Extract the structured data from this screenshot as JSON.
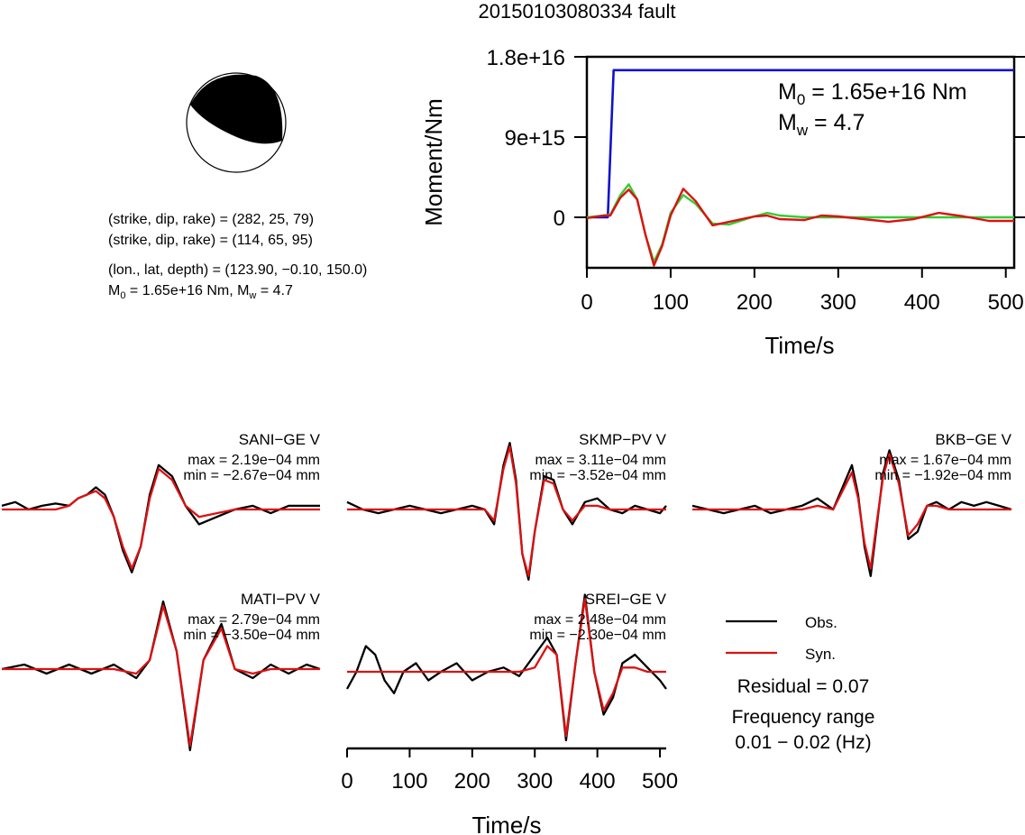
{
  "page_title": "20150103080334 fault",
  "mechanism": {
    "line1": "(strike, dip, rake) = (282, 25, 79)",
    "line2": "(strike, dip, rake) = (114, 65, 95)",
    "line3": "(lon., lat, depth) = (123.90, −0.10, 150.0)",
    "m0_label": "M",
    "m0_sub": "0",
    "m0_rest": " = 1.65e+16 Nm, M",
    "mw_sub": "w",
    "mw_rest": " = 4.7"
  },
  "moment_chart": {
    "ylabel": "Moment/Nm",
    "xlabel": "Time/s",
    "y_ticks": [
      "1.8e+16",
      "9e+15",
      "0"
    ],
    "x_ticks": [
      "0",
      "100",
      "200",
      "300",
      "400",
      "500"
    ],
    "m0_text": "M",
    "m0_sub": "0",
    "m0_value": " = 1.65e+16 Nm",
    "mw_text": "M",
    "mw_sub": "w",
    "mw_value": " = 4.7"
  },
  "waveforms": {
    "xlabel": "Time/s",
    "x_ticks": [
      "0",
      "100",
      "200",
      "300",
      "400",
      "500"
    ],
    "stations": [
      {
        "name": "SANI−GE V",
        "max": "max = 2.19e−04 mm",
        "min": "min = −2.67e−04 mm"
      },
      {
        "name": "SKMP−PV V",
        "max": "max = 3.11e−04 mm",
        "min": "min = −3.52e−04 mm"
      },
      {
        "name": "BKB−GE V",
        "max": "max = 1.67e−04 mm",
        "min": "min = −1.92e−04 mm"
      },
      {
        "name": "MATI−PV V",
        "max": "max = 2.79e−04 mm",
        "min": "min = −3.50e−04 mm"
      },
      {
        "name": "SREI−GE V",
        "max": "max = 2.48e−04 mm",
        "min": "min = −2.30e−04 mm"
      }
    ]
  },
  "legend": {
    "obs": "Obs.",
    "syn": "Syn.",
    "residual": "Residual = 0.07",
    "freq_title": "Frequency range",
    "freq_value": "0.01 − 0.02 (Hz)"
  },
  "colors": {
    "moment_function": "#1111cc",
    "observed": "#000000",
    "synthetic": "#dd1111",
    "synthetic_green": "#33cc33"
  },
  "chart_data": [
    {
      "type": "line",
      "title": "",
      "xlabel": "Time/s",
      "ylabel": "Moment/Nm",
      "xlim": [
        0,
        510
      ],
      "ylim": [
        -5500000000000000.0,
        1.8e+16
      ],
      "series": [
        {
          "color": "#1111cc",
          "x": [
            0,
            25,
            30,
            32,
            510
          ],
          "y": [
            0,
            0,
            1.2e+16,
            1.65e+16,
            1.65e+16
          ]
        },
        {
          "color": "#33cc33",
          "x": [
            0,
            20,
            28,
            40,
            50,
            60,
            70,
            80,
            90,
            100,
            115,
            130,
            150,
            170,
            200,
            215,
            230,
            260,
            300,
            350,
            400,
            450,
            510
          ],
          "y": [
            0,
            200000000000000.0,
            300000000000000.0,
            2500000000000000.0,
            3700000000000000.0,
            2000000000000000.0,
            -2000000000000000.0,
            -5000000000000000.0,
            -3000000000000000.0,
            500000000000000.0,
            2500000000000000.0,
            1500000000000000.0,
            -700000000000000.0,
            -800000000000000.0,
            100000000000000.0,
            500000000000000.0,
            200000000000000.0,
            0,
            0,
            0,
            0,
            0,
            0
          ]
        },
        {
          "color": "#dd1111",
          "x": [
            0,
            20,
            28,
            40,
            50,
            60,
            70,
            80,
            90,
            100,
            115,
            130,
            150,
            170,
            200,
            215,
            230,
            260,
            280,
            300,
            330,
            360,
            390,
            420,
            450,
            480,
            510
          ],
          "y": [
            -100000000000000.0,
            200000000000000.0,
            200000000000000.0,
            2200000000000000.0,
            3100000000000000.0,
            2000000000000000.0,
            -2000000000000000.0,
            -5400000000000000.0,
            -3200000000000000.0,
            200000000000000.0,
            3200000000000000.0,
            1800000000000000.0,
            -900000000000000.0,
            -500000000000000.0,
            100000000000000.0,
            200000000000000.0,
            -200000000000000.0,
            -300000000000000.0,
            200000000000000.0,
            100000000000000.0,
            -200000000000000.0,
            -500000000000000.0,
            -200000000000000.0,
            500000000000000.0,
            100000000000000.0,
            -400000000000000.0,
            -400000000000000.0
          ]
        }
      ]
    },
    {
      "type": "line",
      "title": "SANI−GE V",
      "xlim": [
        0,
        510
      ],
      "series": [
        {
          "name": "Obs.",
          "color": "#000000",
          "x": [
            0,
            15,
            30,
            45,
            60,
            75,
            85,
            95,
            105,
            115,
            125,
            135,
            145,
            155,
            165,
            175,
            190,
            205,
            220,
            240,
            260,
            280,
            300,
            320,
            340,
            355
          ],
          "y": [
            0.05,
            0.1,
            0.0,
            0.05,
            0.08,
            0.05,
            0.15,
            0.2,
            0.3,
            0.2,
            -0.1,
            -0.55,
            -0.85,
            -0.5,
            0.2,
            0.6,
            0.45,
            0.05,
            -0.2,
            -0.1,
            0.0,
            0.05,
            -0.05,
            0.05,
            0.05,
            0.05
          ]
        },
        {
          "name": "Syn.",
          "color": "#dd1111",
          "x": [
            0,
            15,
            30,
            45,
            60,
            75,
            85,
            95,
            105,
            115,
            125,
            135,
            145,
            155,
            165,
            175,
            190,
            205,
            220,
            240,
            260,
            280,
            300,
            320,
            340,
            355
          ],
          "y": [
            0.0,
            0.0,
            0.0,
            0.0,
            0.0,
            0.05,
            0.15,
            0.2,
            0.25,
            0.15,
            -0.1,
            -0.5,
            -0.8,
            -0.5,
            0.15,
            0.55,
            0.4,
            0.05,
            -0.1,
            -0.05,
            0.0,
            0.0,
            0.0,
            0.0,
            0.0,
            0.0
          ]
        }
      ]
    },
    {
      "type": "line",
      "title": "SKMP−PV V",
      "xlim": [
        0,
        510
      ],
      "series": [
        {
          "name": "Obs.",
          "color": "#000000",
          "x": [
            0,
            25,
            50,
            75,
            100,
            125,
            150,
            175,
            200,
            220,
            235,
            250,
            260,
            270,
            280,
            290,
            300,
            315,
            330,
            345,
            360,
            380,
            400,
            420,
            440,
            460,
            480,
            500,
            510
          ],
          "y": [
            0.1,
            0.0,
            -0.05,
            0.0,
            0.05,
            0.0,
            -0.05,
            0.0,
            0.05,
            0.0,
            -0.2,
            0.6,
            0.9,
            0.4,
            -0.6,
            -0.95,
            -0.3,
            0.45,
            0.4,
            0.0,
            -0.2,
            0.1,
            0.15,
            0.0,
            -0.05,
            0.05,
            0.0,
            -0.05,
            0.05
          ]
        },
        {
          "name": "Syn.",
          "color": "#dd1111",
          "x": [
            0,
            25,
            50,
            75,
            100,
            125,
            150,
            175,
            200,
            220,
            235,
            250,
            260,
            270,
            280,
            290,
            300,
            315,
            330,
            345,
            360,
            380,
            400,
            420,
            440,
            460,
            480,
            500,
            510
          ],
          "y": [
            0.0,
            0.0,
            0.0,
            0.0,
            0.0,
            0.0,
            0.0,
            0.0,
            0.0,
            0.0,
            -0.15,
            0.55,
            0.85,
            0.35,
            -0.6,
            -0.9,
            -0.3,
            0.4,
            0.35,
            0.0,
            -0.15,
            0.05,
            0.05,
            0.0,
            0.0,
            0.0,
            0.0,
            0.0,
            0.0
          ]
        }
      ]
    },
    {
      "type": "line",
      "title": "BKB−GE V",
      "xlim": [
        0,
        510
      ],
      "series": [
        {
          "name": "Obs.",
          "color": "#000000",
          "x": [
            0,
            25,
            50,
            75,
            100,
            125,
            150,
            175,
            200,
            225,
            240,
            255,
            265,
            275,
            285,
            295,
            305,
            315,
            330,
            345,
            360,
            375,
            390,
            410,
            430,
            450,
            470,
            490,
            510
          ],
          "y": [
            0.05,
            0.0,
            -0.05,
            0.0,
            0.05,
            -0.05,
            0.0,
            0.05,
            0.15,
            0.0,
            0.3,
            0.6,
            0.2,
            -0.5,
            -0.9,
            -0.2,
            0.5,
            0.8,
            0.4,
            -0.4,
            -0.3,
            0.05,
            0.1,
            0.0,
            0.1,
            0.05,
            0.1,
            0.05,
            0.0
          ]
        },
        {
          "name": "Syn.",
          "color": "#dd1111",
          "x": [
            0,
            25,
            50,
            75,
            100,
            125,
            150,
            175,
            200,
            225,
            240,
            255,
            265,
            275,
            285,
            295,
            305,
            315,
            330,
            345,
            360,
            375,
            390,
            410,
            430,
            450,
            470,
            490,
            510
          ],
          "y": [
            0.0,
            0.0,
            0.0,
            0.0,
            0.0,
            0.0,
            0.0,
            0.0,
            0.05,
            0.0,
            0.25,
            0.5,
            0.15,
            -0.45,
            -0.8,
            -0.15,
            0.45,
            0.75,
            0.35,
            -0.35,
            -0.2,
            0.05,
            0.05,
            0.0,
            0.0,
            0.0,
            0.0,
            0.0,
            0.0
          ]
        }
      ]
    },
    {
      "type": "line",
      "title": "MATI−PV V",
      "xlim": [
        0,
        510
      ],
      "series": [
        {
          "name": "Obs.",
          "color": "#000000",
          "x": [
            0,
            25,
            50,
            75,
            100,
            125,
            150,
            165,
            180,
            195,
            210,
            225,
            245,
            260,
            280,
            300,
            320,
            340,
            355
          ],
          "y": [
            0.0,
            0.05,
            -0.05,
            0.05,
            -0.05,
            0.05,
            -0.1,
            0.1,
            0.75,
            0.2,
            -0.9,
            0.1,
            0.5,
            0.0,
            -0.1,
            0.05,
            -0.05,
            0.05,
            0.0
          ]
        },
        {
          "name": "Syn.",
          "color": "#dd1111",
          "x": [
            0,
            25,
            50,
            75,
            100,
            125,
            150,
            165,
            180,
            195,
            210,
            225,
            245,
            260,
            280,
            300,
            320,
            340,
            355
          ],
          "y": [
            0.0,
            0.0,
            0.0,
            0.0,
            0.0,
            0.0,
            -0.05,
            0.1,
            0.7,
            0.2,
            -0.85,
            0.1,
            0.45,
            0.0,
            -0.05,
            0.0,
            0.0,
            0.0,
            0.0
          ]
        }
      ]
    },
    {
      "type": "line",
      "title": "SREI−GE V",
      "xlabel": "Time/s",
      "xlim": [
        0,
        510
      ],
      "series": [
        {
          "name": "Obs.",
          "color": "#000000",
          "x": [
            0,
            15,
            30,
            45,
            60,
            75,
            90,
            110,
            130,
            150,
            175,
            200,
            225,
            250,
            275,
            300,
            320,
            335,
            350,
            365,
            380,
            395,
            410,
            425,
            440,
            460,
            480,
            500,
            510
          ],
          "y": [
            -0.2,
            0.0,
            0.3,
            0.2,
            -0.1,
            -0.25,
            0.0,
            0.1,
            -0.1,
            0.0,
            0.1,
            -0.1,
            0.0,
            0.05,
            -0.05,
            0.2,
            0.4,
            0.2,
            -0.8,
            0.1,
            0.9,
            0.0,
            -0.5,
            -0.3,
            0.1,
            0.2,
            0.05,
            -0.1,
            -0.2
          ]
        },
        {
          "name": "Syn.",
          "color": "#dd1111",
          "x": [
            0,
            15,
            30,
            45,
            60,
            75,
            90,
            110,
            130,
            150,
            175,
            200,
            225,
            250,
            275,
            300,
            320,
            335,
            350,
            365,
            380,
            395,
            410,
            425,
            440,
            460,
            480,
            500,
            510
          ],
          "y": [
            0.0,
            0.0,
            0.0,
            0.0,
            0.0,
            0.0,
            0.0,
            0.0,
            0.0,
            0.0,
            0.0,
            0.0,
            0.0,
            0.0,
            0.0,
            0.05,
            0.3,
            0.2,
            -0.75,
            0.1,
            0.85,
            0.0,
            -0.45,
            -0.25,
            0.05,
            0.05,
            0.0,
            0.0,
            0.0
          ]
        }
      ]
    }
  ]
}
